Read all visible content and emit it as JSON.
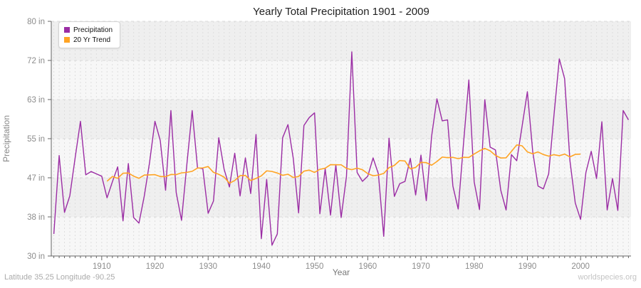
{
  "title": "Yearly Total Precipitation 1901 - 2009",
  "x_axis": {
    "label": "Year",
    "tick_years": [
      1910,
      1920,
      1930,
      1940,
      1950,
      1960,
      1970,
      1980,
      1990,
      2000
    ]
  },
  "y_axis": {
    "label": "Precipitation",
    "ticks": [
      {
        "label": "80 in",
        "value": 80
      },
      {
        "label": "72 in",
        "value": 71.667
      },
      {
        "label": "63 in",
        "value": 63.333
      },
      {
        "label": "55 in",
        "value": 55
      },
      {
        "label": "47 in",
        "value": 46.667
      },
      {
        "label": "38 in",
        "value": 38.333
      },
      {
        "label": "30 in",
        "value": 30
      }
    ]
  },
  "legend": {
    "items": [
      {
        "label": "Precipitation",
        "color": "#9b2da4"
      },
      {
        "label": "20 Yr Trend",
        "color": "#ffa424"
      }
    ]
  },
  "footer": {
    "left": "Latitude 35.25 Longitude -90.25",
    "right": "worldspecies.org"
  },
  "colors": {
    "precipitation_line": "#9b2da4",
    "trend_line": "#ffa424",
    "band_dark": "#efefef",
    "band_light": "#f7f7f7",
    "grid_vertical": "#dedede",
    "grid_horizontal": "#d9d9d9",
    "axis": "#666666",
    "tick_label": "#8c8c8c"
  },
  "chart_data": {
    "type": "line",
    "title": "Yearly Total Precipitation 1901 - 2009",
    "xlabel": "Year",
    "ylabel": "Precipitation",
    "ylim": [
      30,
      80
    ],
    "xlim": [
      1901,
      2009
    ],
    "x_start_year": 1901,
    "legend_position": "top-left",
    "grid": "on",
    "series": [
      {
        "name": "Precipitation",
        "unit": "in",
        "values": [
          34.7,
          51.4,
          39.3,
          42.8,
          50.9,
          58.7,
          47.3,
          48.0,
          47.5,
          47.0,
          42.4,
          45.8,
          49.0,
          37.5,
          49.7,
          38.2,
          37.0,
          42.8,
          50.0,
          58.7,
          54.6,
          44.0,
          61.0,
          43.5,
          37.6,
          49.5,
          61.0,
          48.8,
          48.6,
          39.1,
          41.7,
          55.2,
          48.5,
          44.7,
          51.9,
          42.8,
          50.9,
          43.3,
          55.9,
          33.7,
          46.3,
          32.3,
          34.7,
          55.2,
          58.0,
          50.8,
          39.2,
          57.8,
          59.5,
          60.5,
          39.0,
          48.6,
          38.7,
          49.4,
          38.2,
          47.0,
          73.5,
          47.8,
          45.9,
          47.0,
          50.9,
          47.5,
          34.2,
          55.1,
          42.7,
          45.4,
          45.9,
          50.8,
          43.0,
          51.5,
          41.8,
          55.5,
          63.5,
          58.8,
          59.0,
          44.9,
          40.0,
          54.0,
          67.5,
          45.8,
          39.9,
          63.3,
          53.2,
          52.6,
          44.0,
          39.8,
          51.6,
          50.3,
          57.6,
          65.0,
          52.3,
          44.9,
          44.3,
          47.5,
          60.0,
          72.0,
          67.8,
          50.3,
          41.3,
          37.8,
          47.8,
          52.3,
          46.5,
          58.6,
          39.8,
          46.5,
          39.7,
          61.0,
          59.0
        ]
      },
      {
        "name": "20 Yr Trend",
        "derived": "20-year centered moving average of Precipitation, plotted 1911-2000"
      }
    ]
  }
}
